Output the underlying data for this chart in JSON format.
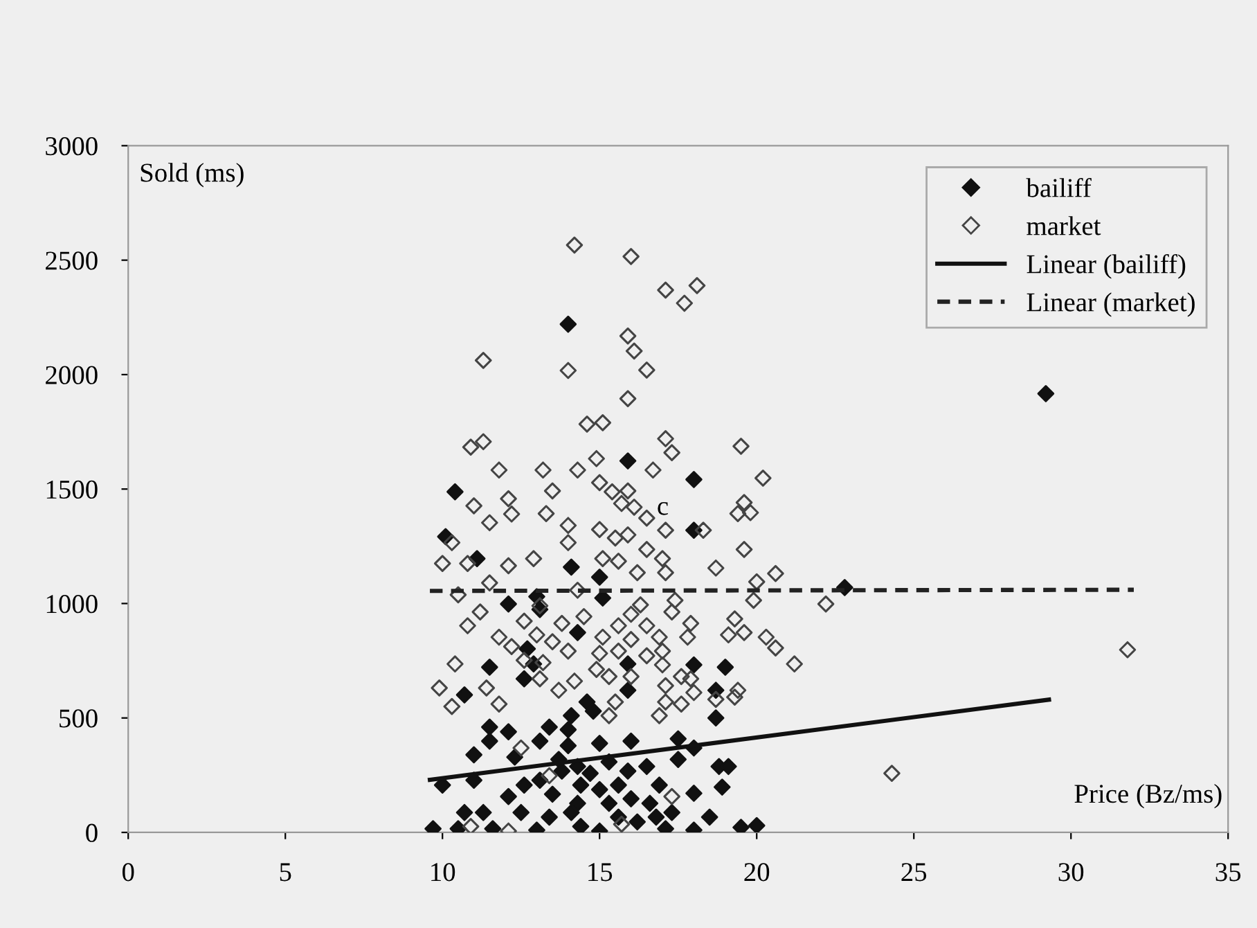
{
  "chart_data": {
    "type": "scatter",
    "xlabel": "Price (Bz/ms)",
    "ylabel": "Sold (ms)",
    "xlim": [
      0,
      35
    ],
    "ylim": [
      0,
      3000
    ],
    "xticks": [
      0,
      5,
      10,
      15,
      20,
      25,
      30,
      35
    ],
    "yticks": [
      0,
      500,
      1000,
      1500,
      2000,
      2500,
      3000
    ],
    "grid": false,
    "legend": "top right",
    "marker": "diamond",
    "annotations": [
      "c"
    ],
    "series": [
      {
        "name": "bailiff",
        "color": "#111111",
        "x": [
          14.0,
          15.9,
          18.0,
          10.4,
          10.1,
          11.1,
          14.1,
          18.0,
          15.0,
          29.2,
          22.8,
          20.0,
          13.0,
          12.1,
          13.1,
          15.1,
          14.3,
          12.7,
          12.9,
          11.5,
          12.6,
          10.7,
          15.9,
          18.0,
          19.0,
          18.7,
          15.9,
          14.6,
          14.8,
          14.1,
          14.0,
          13.4,
          11.5,
          11.5,
          12.1,
          11.0,
          13.1,
          14.0,
          15.0,
          16.0,
          17.5,
          18.0,
          18.7,
          17.5,
          18.8,
          19.1,
          10.0,
          11.0,
          12.1,
          12.6,
          13.1,
          13.8,
          14.3,
          14.7,
          15.3,
          15.9,
          16.5,
          16.9,
          15.6,
          15.0,
          13.5,
          14.3,
          15.3,
          16.0,
          16.6,
          17.3,
          18.0,
          18.9,
          18.5,
          18.0,
          19.5,
          9.7,
          10.5,
          10.7,
          11.3,
          11.6,
          12.5,
          13.0,
          13.4,
          14.1,
          14.4,
          15.0,
          15.6,
          16.2,
          16.8,
          17.1,
          13.7,
          12.3,
          14.4
        ],
        "values": [
          2220,
          1623,
          1542,
          1488,
          1292,
          1196,
          1159,
          1320,
          1115,
          1917,
          1070,
          30,
          1030,
          998,
          974,
          1024,
          873,
          802,
          736,
          722,
          671,
          601,
          736,
          732,
          722,
          621,
          621,
          570,
          530,
          510,
          449,
          460,
          460,
          399,
          440,
          339,
          399,
          379,
          389,
          399,
          409,
          369,
          500,
          319,
          288,
          288,
          207,
          228,
          157,
          207,
          228,
          268,
          288,
          258,
          308,
          268,
          288,
          207,
          207,
          187,
          167,
          127,
          127,
          147,
          127,
          87,
          171,
          198,
          67,
          10,
          22,
          16,
          16,
          87,
          87,
          16,
          87,
          10,
          67,
          87,
          26,
          6,
          67,
          46,
          67,
          16,
          319,
          329,
          207
        ]
      },
      {
        "name": "market",
        "color": "#444444",
        "x": [
          14.2,
          16.0,
          17.1,
          18.1,
          17.7,
          15.9,
          16.1,
          11.3,
          14.0,
          16.5,
          15.9,
          14.6,
          15.1,
          10.9,
          11.3,
          17.1,
          19.5,
          11.8,
          13.2,
          14.3,
          14.9,
          17.3,
          16.7,
          13.5,
          11.0,
          12.1,
          12.2,
          13.3,
          11.5,
          15.0,
          15.4,
          15.9,
          15.7,
          16.1,
          16.5,
          17.1,
          14.0,
          14.0,
          15.0,
          15.5,
          15.9,
          19.6,
          19.4,
          19.6,
          18.3,
          10.3,
          10.0,
          10.8,
          12.9,
          12.1,
          15.1,
          15.6,
          16.5,
          17.0,
          18.7,
          10.5,
          11.2,
          10.8,
          11.5,
          12.6,
          11.8,
          12.2,
          10.4,
          9.9,
          10.3,
          11.4,
          11.8,
          13.1,
          13.0,
          13.5,
          14.0,
          13.8,
          14.5,
          14.3,
          13.2,
          12.6,
          13.1,
          13.7,
          14.2,
          15.1,
          15.0,
          14.9,
          15.3,
          15.6,
          15.6,
          16.0,
          16.3,
          16.5,
          16.0,
          16.5,
          16.9,
          17.0,
          17.0,
          16.0,
          17.1,
          17.6,
          17.9,
          18.0,
          17.6,
          17.1,
          16.9,
          15.3,
          15.5,
          17.3,
          17.4,
          17.9,
          17.8,
          16.2,
          17.1,
          19.3,
          19.1,
          19.6,
          19.9,
          19.4,
          19.3,
          18.7,
          12.1,
          10.9,
          15.7,
          17.3,
          12.5,
          13.4,
          20.2,
          19.8,
          20.6,
          20.0,
          22.2,
          20.3,
          20.6,
          21.2,
          31.8,
          24.3
        ],
        "values": [
          2566,
          2516,
          2369,
          2389,
          2312,
          2169,
          2103,
          2062,
          2018,
          2020,
          1895,
          1784,
          1790,
          1683,
          1707,
          1720,
          1687,
          1583,
          1583,
          1583,
          1633,
          1659,
          1583,
          1492,
          1427,
          1458,
          1391,
          1393,
          1353,
          1528,
          1488,
          1492,
          1437,
          1421,
          1373,
          1320,
          1341,
          1266,
          1323,
          1286,
          1300,
          1441,
          1393,
          1236,
          1320,
          1266,
          1175,
          1175,
          1196,
          1165,
          1196,
          1185,
          1236,
          1196,
          1155,
          1038,
          963,
          903,
          1090,
          923,
          853,
          812,
          736,
          631,
          550,
          631,
          561,
          990,
          863,
          833,
          792,
          913,
          943,
          1058,
          742,
          752,
          671,
          621,
          661,
          853,
          782,
          712,
          681,
          792,
          903,
          953,
          994,
          903,
          843,
          772,
          853,
          792,
          732,
          681,
          641,
          681,
          671,
          611,
          561,
          570,
          510,
          510,
          570,
          963,
          1014,
          913,
          853,
          1135,
          1135,
          933,
          863,
          873,
          1014,
          621,
          591,
          581,
          6,
          26,
          36,
          157,
          369,
          248,
          1548,
          1397,
          1131,
          1095,
          998,
          853,
          806,
          736,
          798,
          258
        ]
      },
      {
        "name": "Linear (bailiff)",
        "type": "line",
        "color": "#111111",
        "line_style": "solid",
        "marker": "none",
        "x": [
          9.6,
          29.3
        ],
        "values": [
          230,
          580
        ]
      },
      {
        "name": "Linear (market)",
        "type": "line",
        "color": "#222222",
        "line_style": "dashed",
        "marker": "none",
        "x": [
          9.6,
          32.0
        ],
        "values": [
          1055,
          1060
        ]
      }
    ]
  }
}
